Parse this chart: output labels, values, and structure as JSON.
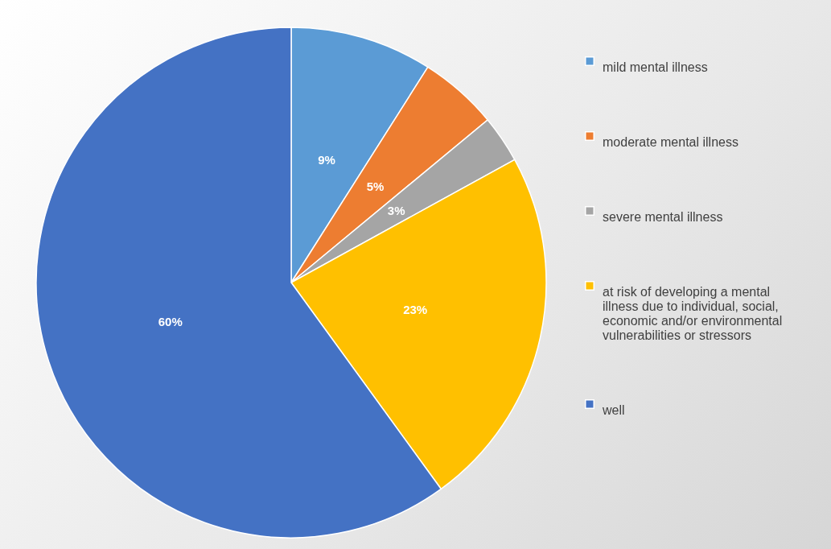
{
  "chart_data": {
    "type": "pie",
    "categories": [
      "mild mental illness",
      "moderate mental illness",
      "severe mental illness",
      "at risk of developing a mental illness due to individual, social, economic and/or environmental vulnerabilities or stressors",
      "well"
    ],
    "values": [
      9,
      5,
      3,
      23,
      60
    ],
    "colors": [
      "#5b9bd5",
      "#ed7d31",
      "#a5a5a5",
      "#ffc000",
      "#4472c4"
    ],
    "value_labels": [
      "9%",
      "5%",
      "3%",
      "23%",
      "60%"
    ],
    "legend": "right"
  }
}
